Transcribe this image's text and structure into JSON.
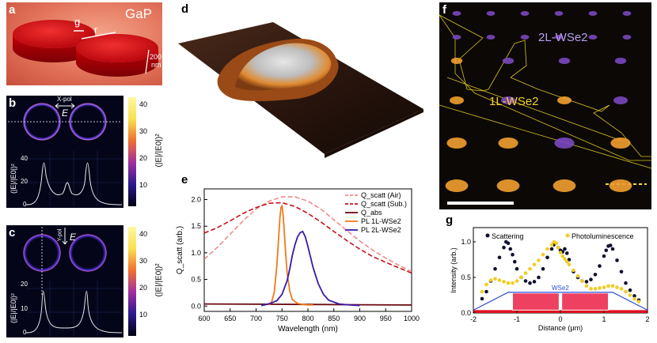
{
  "panels": {
    "a": {
      "letter": "a",
      "material": "GaP",
      "label_g": "g",
      "label_r": "r",
      "scale_value": "200",
      "scale_unit": "nm"
    },
    "b": {
      "letter": "b",
      "pol": "X-pol",
      "field": "E",
      "ylabel": "(|E|/|E0|)²",
      "ticks": [
        "40",
        "20",
        "0"
      ]
    },
    "c": {
      "letter": "c",
      "pol": "Y-pol",
      "field": "E",
      "ylabel": "(|E|/|E0|)²",
      "ticks": [
        "20",
        "10",
        "0"
      ]
    },
    "colorbar_b": {
      "ticks": [
        "40",
        "30",
        "20",
        "10"
      ],
      "label": "(|E|/|E0|)²"
    },
    "colorbar_c": {
      "ticks": [
        "40",
        "30",
        "20",
        "10"
      ],
      "label": "(|E|/|E0|)²"
    },
    "d": {
      "letter": "d"
    },
    "f": {
      "letter": "f",
      "label_2l": "2L-WSe2",
      "label_1l": "1L-WSe2"
    },
    "g": {
      "letter": "g",
      "legend_scatter": "Scattering",
      "legend_pl": "Photoluminescence",
      "wse2_label": "WSe2",
      "ylabel": "Intensity (arb.)",
      "xlabel": "Distance (μm)"
    },
    "e": {
      "letter": "e"
    }
  },
  "chart_data": [
    {
      "type": "line",
      "title": "",
      "xlabel": "Wavelength (nm)",
      "ylabel": "Q_scatt (arb.)",
      "xlim": [
        600,
        1000
      ],
      "ylim": [
        -0.1,
        2.2
      ],
      "xticks": [
        600,
        650,
        700,
        750,
        800,
        850,
        900,
        950,
        1000
      ],
      "yticks": [
        0.0,
        0.5,
        1.0,
        1.5,
        2.0
      ],
      "legend_position": "top-right",
      "series": [
        {
          "name": "Q_scatt (Air)",
          "color": "#f08a8a",
          "dash": "dashed",
          "x": [
            600,
            625,
            650,
            675,
            700,
            725,
            750,
            775,
            800,
            825,
            850,
            875,
            900,
            925,
            950,
            975,
            1000
          ],
          "y": [
            0.88,
            1.1,
            1.35,
            1.6,
            1.82,
            1.97,
            2.05,
            2.05,
            1.97,
            1.82,
            1.62,
            1.42,
            1.22,
            1.05,
            0.9,
            0.77,
            0.65
          ]
        },
        {
          "name": "Q_scatt (Sub.)",
          "color": "#c8101a",
          "dash": "dashed",
          "x": [
            600,
            625,
            650,
            675,
            700,
            725,
            750,
            775,
            800,
            825,
            850,
            875,
            900,
            925,
            950,
            975,
            1000
          ],
          "y": [
            1.37,
            1.47,
            1.6,
            1.74,
            1.85,
            1.93,
            1.94,
            1.87,
            1.74,
            1.58,
            1.4,
            1.23,
            1.07,
            0.93,
            0.82,
            0.72,
            0.62
          ]
        },
        {
          "name": "Q_abs",
          "color": "#6a0a10",
          "dash": "solid",
          "x": [
            600,
            700,
            800,
            900,
            1000
          ],
          "y": [
            0.04,
            0.035,
            0.03,
            0.025,
            0.02
          ]
        },
        {
          "name": "PL 1L-WSe2",
          "color": "#f07a1a",
          "dash": "solid",
          "x": [
            725,
            730,
            735,
            740,
            743,
            746,
            748,
            750,
            752,
            754,
            757,
            760,
            765,
            770,
            780,
            790,
            800,
            810
          ],
          "y": [
            0.02,
            0.08,
            0.25,
            0.75,
            1.2,
            1.65,
            1.85,
            1.88,
            1.72,
            1.45,
            1.0,
            0.62,
            0.28,
            0.12,
            0.05,
            0.03,
            0.02,
            0.02
          ]
        },
        {
          "name": "PL 2L-WSe2",
          "color": "#3a18a8",
          "dash": "solid",
          "x": [
            710,
            720,
            730,
            740,
            750,
            760,
            765,
            770,
            775,
            780,
            785,
            790,
            795,
            800,
            805,
            810,
            820,
            830,
            840,
            860,
            880,
            900
          ],
          "y": [
            0.01,
            0.03,
            0.06,
            0.1,
            0.22,
            0.48,
            0.7,
            0.95,
            1.15,
            1.3,
            1.38,
            1.4,
            1.3,
            1.12,
            0.92,
            0.72,
            0.42,
            0.22,
            0.11,
            0.04,
            0.02,
            0.01
          ]
        }
      ]
    },
    {
      "type": "scatter",
      "title": "",
      "xlabel": "Distance (μm)",
      "ylabel": "Intensity (arb.)",
      "xlim": [
        -2,
        2
      ],
      "ylim": [
        0,
        1.2
      ],
      "xticks": [
        -2,
        -1,
        0,
        1,
        2
      ],
      "yticks": [
        0.0,
        0.5,
        1.0
      ],
      "legend_position": "top",
      "series": [
        {
          "name": "Scattering",
          "color": "#101030",
          "x": [
            -1.8,
            -1.7,
            -1.6,
            -1.5,
            -1.4,
            -1.3,
            -1.25,
            -1.2,
            -1.15,
            -1.1,
            -1.05,
            -1.0,
            -0.9,
            -0.8,
            -0.7,
            -0.6,
            -0.5,
            -0.4,
            -0.3,
            -0.2,
            -0.15,
            -0.1,
            -0.05,
            0.0,
            0.05,
            0.1,
            0.15,
            0.2,
            0.3,
            0.4,
            0.5,
            0.6,
            0.7,
            0.8,
            0.9,
            1.0,
            1.05,
            1.1,
            1.15,
            1.2,
            1.3,
            1.4,
            1.5,
            1.6,
            1.7,
            1.8
          ],
          "y": [
            0.2,
            0.3,
            0.45,
            0.62,
            0.78,
            0.92,
            1.0,
            0.98,
            0.9,
            0.82,
            0.72,
            0.62,
            0.5,
            0.45,
            0.42,
            0.44,
            0.5,
            0.62,
            0.78,
            0.9,
            0.96,
            0.98,
            0.92,
            0.88,
            0.86,
            0.9,
            0.84,
            0.75,
            0.58,
            0.5,
            0.45,
            0.44,
            0.47,
            0.54,
            0.66,
            0.8,
            0.88,
            0.94,
            0.95,
            0.9,
            0.74,
            0.58,
            0.42,
            0.32,
            0.24,
            0.18
          ]
        },
        {
          "name": "Photoluminescence",
          "color": "#f2cc22",
          "x": [
            -1.8,
            -1.7,
            -1.6,
            -1.5,
            -1.4,
            -1.3,
            -1.2,
            -1.1,
            -1.0,
            -0.9,
            -0.8,
            -0.7,
            -0.6,
            -0.5,
            -0.4,
            -0.3,
            -0.2,
            -0.15,
            -0.1,
            -0.05,
            0.0,
            0.05,
            0.1,
            0.15,
            0.2,
            0.3,
            0.4,
            0.5,
            0.6,
            0.7,
            0.8,
            0.9,
            1.0,
            1.1,
            1.2,
            1.3,
            1.4,
            1.5,
            1.6,
            1.7,
            1.8
          ],
          "y": [
            0.3,
            0.4,
            0.46,
            0.48,
            0.46,
            0.44,
            0.42,
            0.42,
            0.45,
            0.5,
            0.56,
            0.62,
            0.68,
            0.74,
            0.82,
            0.9,
            0.96,
            1.0,
            0.98,
            0.92,
            0.85,
            0.8,
            0.76,
            0.72,
            0.68,
            0.6,
            0.52,
            0.45,
            0.38,
            0.34,
            0.34,
            0.35,
            0.36,
            0.38,
            0.38,
            0.36,
            0.34,
            0.3,
            0.25,
            0.2,
            0.16
          ]
        }
      ]
    }
  ]
}
